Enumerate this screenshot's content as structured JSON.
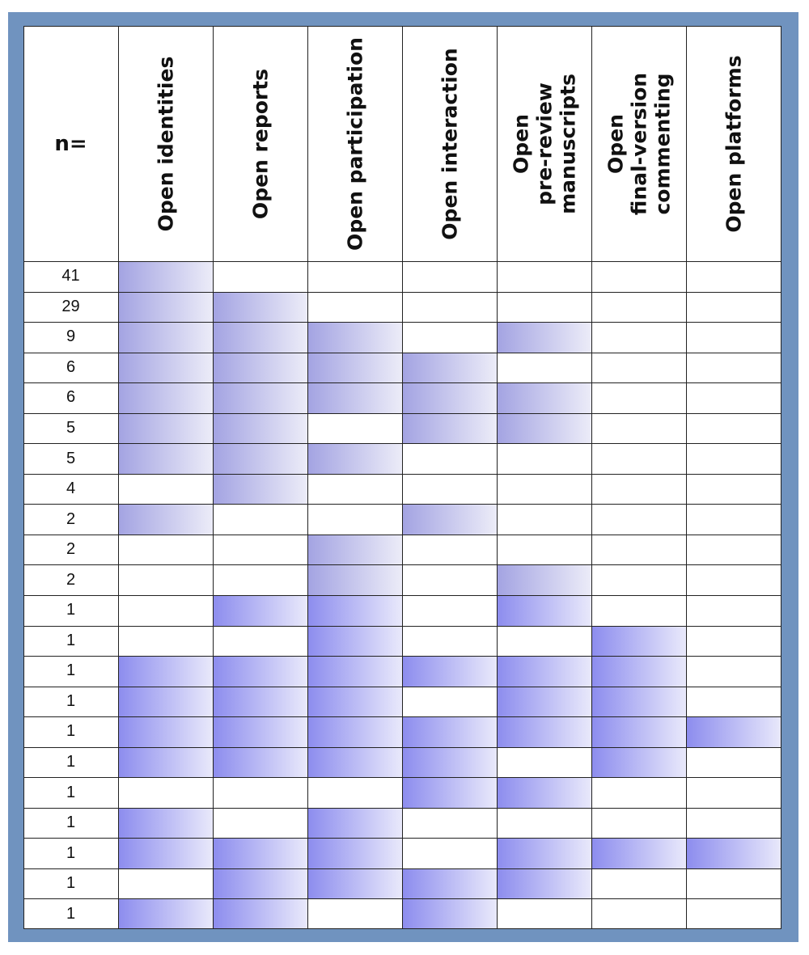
{
  "chart_data": {
    "type": "table",
    "row_header": "n=",
    "columns": [
      "Open identities",
      "Open reports",
      "Open participation",
      "Open interaction",
      "Open\npre-review\nmanuscripts",
      "Open\nfinal-version\ncommenting",
      "Open platforms"
    ],
    "rows": [
      {
        "n": "41",
        "cells": [
          1,
          0,
          0,
          0,
          0,
          0,
          0
        ]
      },
      {
        "n": "29",
        "cells": [
          1,
          1,
          0,
          0,
          0,
          0,
          0
        ]
      },
      {
        "n": "9",
        "cells": [
          1,
          1,
          1,
          0,
          1,
          0,
          0
        ]
      },
      {
        "n": "6",
        "cells": [
          1,
          1,
          1,
          1,
          0,
          0,
          0
        ]
      },
      {
        "n": "6",
        "cells": [
          1,
          1,
          1,
          1,
          1,
          0,
          0
        ]
      },
      {
        "n": "5",
        "cells": [
          1,
          1,
          0,
          1,
          1,
          0,
          0
        ]
      },
      {
        "n": "5",
        "cells": [
          1,
          1,
          1,
          0,
          0,
          0,
          0
        ]
      },
      {
        "n": "4",
        "cells": [
          0,
          1,
          0,
          0,
          0,
          0,
          0
        ]
      },
      {
        "n": "2",
        "cells": [
          1,
          0,
          0,
          1,
          0,
          0,
          0
        ]
      },
      {
        "n": "2",
        "cells": [
          0,
          0,
          1,
          0,
          0,
          0,
          0
        ]
      },
      {
        "n": "2",
        "cells": [
          0,
          0,
          1,
          0,
          1,
          0,
          0
        ]
      },
      {
        "n": "1",
        "cells": [
          0,
          1,
          1,
          0,
          1,
          0,
          0
        ]
      },
      {
        "n": "1",
        "cells": [
          0,
          0,
          1,
          0,
          0,
          1,
          0
        ]
      },
      {
        "n": "1",
        "cells": [
          1,
          1,
          1,
          1,
          1,
          1,
          0
        ]
      },
      {
        "n": "1",
        "cells": [
          1,
          1,
          1,
          0,
          1,
          1,
          0
        ]
      },
      {
        "n": "1",
        "cells": [
          1,
          1,
          1,
          1,
          1,
          1,
          1
        ]
      },
      {
        "n": "1",
        "cells": [
          1,
          1,
          1,
          1,
          0,
          1,
          0
        ]
      },
      {
        "n": "1",
        "cells": [
          0,
          0,
          0,
          1,
          1,
          0,
          0
        ]
      },
      {
        "n": "1",
        "cells": [
          1,
          0,
          1,
          0,
          0,
          0,
          0
        ]
      },
      {
        "n": "1",
        "cells": [
          1,
          1,
          1,
          0,
          1,
          1,
          1
        ]
      },
      {
        "n": "1",
        "cells": [
          0,
          1,
          1,
          1,
          1,
          0,
          0
        ]
      },
      {
        "n": "1",
        "cells": [
          1,
          1,
          0,
          1,
          0,
          0,
          0
        ]
      }
    ],
    "colors": {
      "frame": "#7093bf",
      "shade_light_start": "#a3a3e2",
      "shade_strong_start": "#8c8cee",
      "shade_end": "#ececf8",
      "grid_line": "#222222"
    }
  }
}
